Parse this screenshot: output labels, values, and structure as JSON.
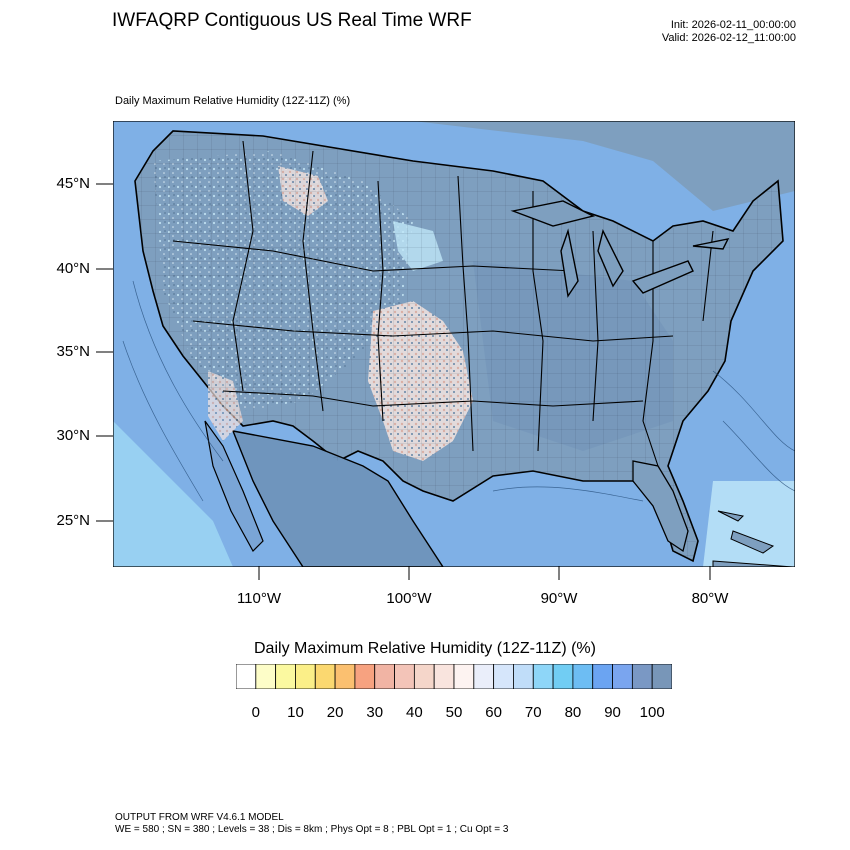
{
  "header": {
    "title": "IWFAQRP Contiguous US Real Time WRF",
    "init": "Init: 2026-02-11_00:00:00",
    "valid": "Valid: 2026-02-12_11:00:00"
  },
  "plot": {
    "subtitle": "Daily Maximum Relative Humidity (12Z-11Z)   (%)",
    "lat_labels": [
      "45°N",
      "40°N",
      "35°N",
      "30°N",
      "25°N"
    ],
    "lon_labels": [
      "110°W",
      "100°W",
      "90°W",
      "80°W"
    ],
    "colors": {
      "land_dominant": "#7e9fbf",
      "ocean": "#7fb0e6",
      "ocean_light": "#9fd8f5",
      "boundary": "#000000"
    }
  },
  "colorbar": {
    "title": "Daily Maximum Relative Humidity (12Z-11Z)  (%)",
    "labels": [
      "0",
      "10",
      "20",
      "30",
      "40",
      "50",
      "60",
      "70",
      "80",
      "90",
      "100"
    ],
    "colors": [
      "#ffffff",
      "#fdfdc8",
      "#fbf9a0",
      "#fbef88",
      "#fbd870",
      "#fbc070",
      "#f7a280",
      "#f1b4a4",
      "#f3c4b8",
      "#f5d6ca",
      "#f9e4de",
      "#fdf3f1",
      "#eaeefa",
      "#d6e6fb",
      "#c0ddf9",
      "#8ed6f8",
      "#71cdf3",
      "#6dbdf3",
      "#6ba4f2",
      "#7aa5ef",
      "#7a98c4",
      "#7896b8"
    ]
  },
  "footer": {
    "line1": "OUTPUT FROM WRF V4.6.1 MODEL",
    "line2": "WE = 580 ; SN = 380 ; Levels = 38 ; Dis = 8km ; Phys Opt = 8 ; PBL Opt = 1 ; Cu Opt = 3"
  }
}
